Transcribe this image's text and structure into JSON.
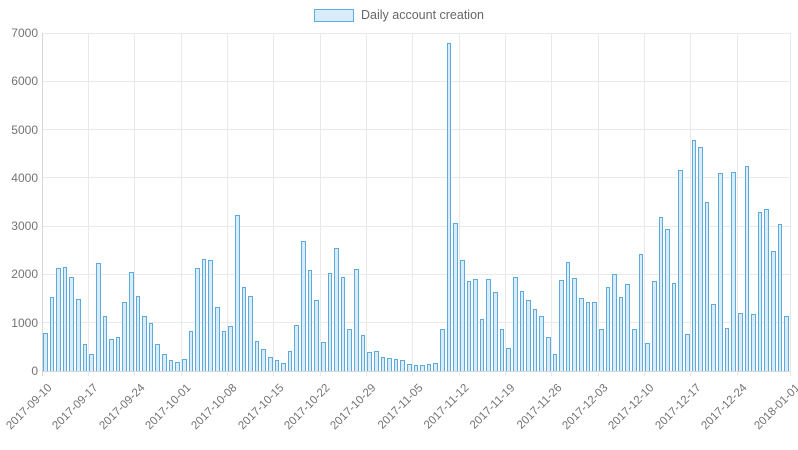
{
  "legend": {
    "label": "Daily account creation"
  },
  "chart_data": {
    "type": "bar",
    "title": "",
    "series_name": "Daily account creation",
    "ylim": [
      0,
      7000
    ],
    "y_ticks": [
      0,
      1000,
      2000,
      3000,
      4000,
      5000,
      6000,
      7000
    ],
    "grid": true,
    "legend_position": "top",
    "x_tick_labels": [
      "2017-09-10",
      "2017-09-17",
      "2017-09-24",
      "2017-10-01",
      "2017-10-08",
      "2017-10-15",
      "2017-10-22",
      "2017-10-29",
      "2017-11-05",
      "2017-11-12",
      "2017-11-19",
      "2017-11-26",
      "2017-12-03",
      "2017-12-10",
      "2017-12-17",
      "2017-12-24",
      "2018-01-01"
    ],
    "x_tick_day_offsets": [
      0,
      7,
      14,
      21,
      28,
      35,
      42,
      49,
      56,
      63,
      70,
      77,
      84,
      91,
      98,
      105,
      113
    ],
    "x": [
      "2017-09-10",
      "2017-09-11",
      "2017-09-12",
      "2017-09-13",
      "2017-09-14",
      "2017-09-15",
      "2017-09-16",
      "2017-09-17",
      "2017-09-18",
      "2017-09-19",
      "2017-09-20",
      "2017-09-21",
      "2017-09-22",
      "2017-09-23",
      "2017-09-24",
      "2017-09-25",
      "2017-09-26",
      "2017-09-27",
      "2017-09-28",
      "2017-09-29",
      "2017-09-30",
      "2017-10-01",
      "2017-10-02",
      "2017-10-03",
      "2017-10-04",
      "2017-10-05",
      "2017-10-06",
      "2017-10-07",
      "2017-10-08",
      "2017-10-09",
      "2017-10-10",
      "2017-10-11",
      "2017-10-12",
      "2017-10-13",
      "2017-10-14",
      "2017-10-15",
      "2017-10-16",
      "2017-10-17",
      "2017-10-18",
      "2017-10-19",
      "2017-10-20",
      "2017-10-21",
      "2017-10-22",
      "2017-10-23",
      "2017-10-24",
      "2017-10-25",
      "2017-10-26",
      "2017-10-27",
      "2017-10-28",
      "2017-10-29",
      "2017-10-30",
      "2017-10-31",
      "2017-11-01",
      "2017-11-02",
      "2017-11-03",
      "2017-11-04",
      "2017-11-05",
      "2017-11-06",
      "2017-11-07",
      "2017-11-08",
      "2017-11-09",
      "2017-11-10",
      "2017-11-11",
      "2017-11-12",
      "2017-11-13",
      "2017-11-14",
      "2017-11-15",
      "2017-11-16",
      "2017-11-17",
      "2017-11-18",
      "2017-11-19",
      "2017-11-20",
      "2017-11-21",
      "2017-11-22",
      "2017-11-23",
      "2017-11-24",
      "2017-11-25",
      "2017-11-26",
      "2017-11-27",
      "2017-11-28",
      "2017-11-29",
      "2017-11-30",
      "2017-12-01",
      "2017-12-02",
      "2017-12-03",
      "2017-12-04",
      "2017-12-05",
      "2017-12-06",
      "2017-12-07",
      "2017-12-08",
      "2017-12-09",
      "2017-12-10",
      "2017-12-11",
      "2017-12-12",
      "2017-12-13",
      "2017-12-14",
      "2017-12-15",
      "2017-12-16",
      "2017-12-17",
      "2017-12-18",
      "2017-12-19",
      "2017-12-20",
      "2017-12-21",
      "2017-12-22",
      "2017-12-23",
      "2017-12-24",
      "2017-12-25",
      "2017-12-26",
      "2017-12-27",
      "2017-12-28",
      "2017-12-29",
      "2017-12-30",
      "2017-12-31"
    ],
    "values": [
      780,
      1530,
      2130,
      2150,
      1950,
      1490,
      560,
      350,
      2230,
      1140,
      660,
      700,
      1420,
      2040,
      1560,
      1140,
      990,
      560,
      360,
      230,
      190,
      250,
      830,
      2130,
      2310,
      2290,
      1330,
      820,
      930,
      3240,
      1730,
      1550,
      620,
      460,
      290,
      220,
      160,
      420,
      950,
      2690,
      2100,
      1480,
      600,
      2030,
      2550,
      1950,
      880,
      2110,
      750,
      390,
      410,
      280,
      260,
      250,
      230,
      150,
      120,
      130,
      150,
      170,
      870,
      6800,
      3070,
      2300,
      1860,
      1900,
      1080,
      1900,
      1640,
      860,
      470,
      1950,
      1660,
      1480,
      1280,
      1130,
      710,
      350,
      1880,
      2260,
      1930,
      1520,
      1430,
      1420,
      860,
      1730,
      2000,
      1540,
      1800,
      880,
      2420,
      580,
      1860,
      3180,
      2950,
      1820,
      4160,
      760,
      4780,
      4630,
      3490,
      1380,
      4100,
      890,
      4120,
      1210,
      4250,
      1180,
      3300,
      3360,
      2480,
      3050,
      1140
    ],
    "colors": {
      "bar_fill": "#d9ecf9",
      "bar_border": "#5dabdd",
      "grid": "#e9e9e9",
      "axis_line": "#d7d7d7",
      "text": "#737373",
      "legend_text": "#666666"
    }
  }
}
